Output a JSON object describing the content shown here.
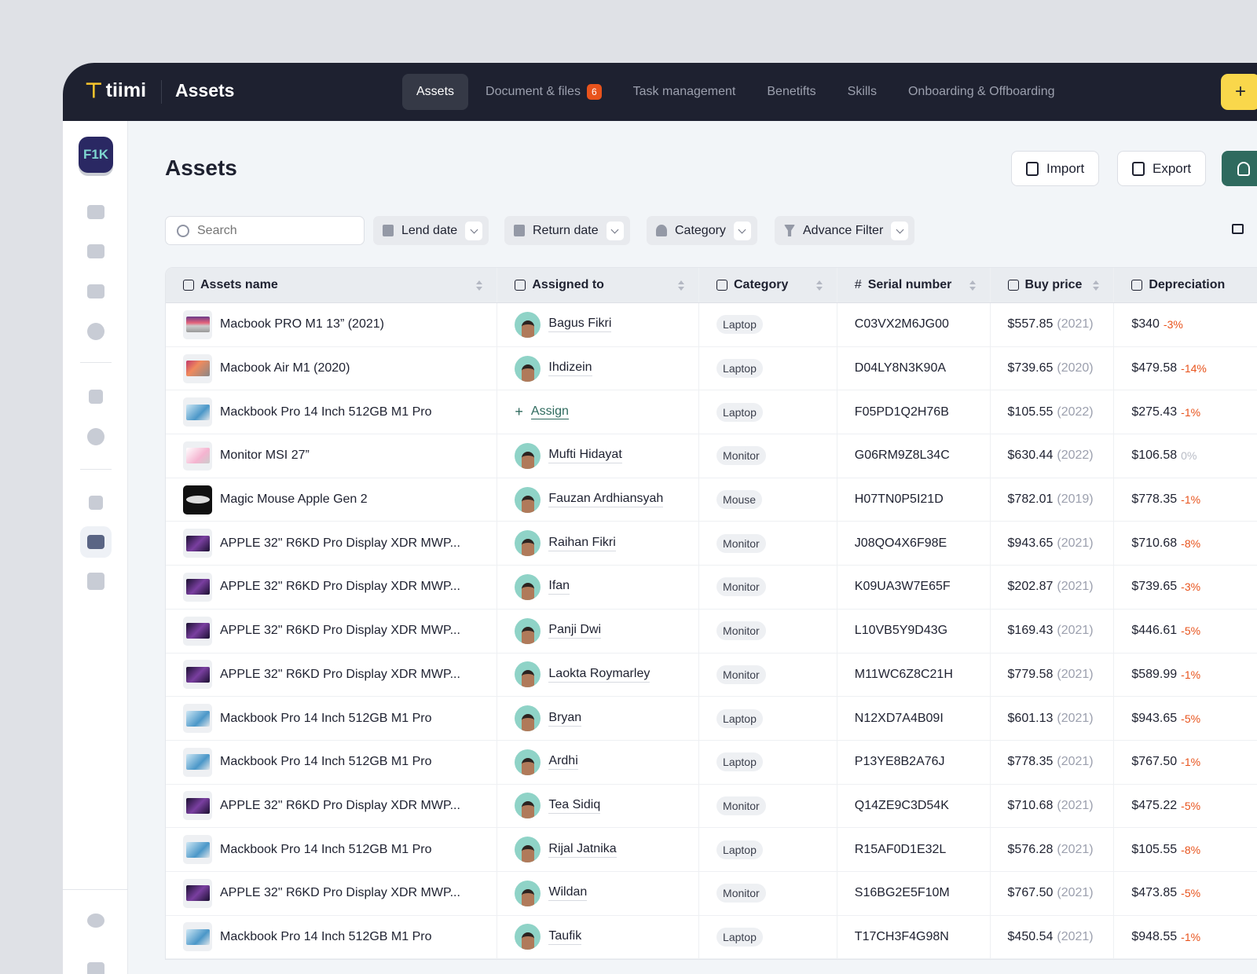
{
  "header": {
    "brand": "tiimi",
    "app_title": "Assets",
    "nav": [
      {
        "label": "Assets",
        "active": true
      },
      {
        "label": "Document & files",
        "badge": "6"
      },
      {
        "label": "Task management"
      },
      {
        "label": "Benetifts"
      },
      {
        "label": "Skills"
      },
      {
        "label": "Onboarding & Offboarding"
      }
    ],
    "add_label": "+"
  },
  "sidebar": {
    "workspace": "F1K"
  },
  "page": {
    "title": "Assets",
    "import_label": "Import",
    "export_label": "Export"
  },
  "filters": {
    "search_placeholder": "Search",
    "lend_date": "Lend date",
    "return_date": "Return date",
    "category": "Category",
    "advance": "Advance Filter"
  },
  "table": {
    "columns": [
      "Assets name",
      "Assigned to",
      "Category",
      "Serial number",
      "Buy price",
      "Depreciation"
    ],
    "assign_label": "Assign",
    "rows": [
      {
        "name": "Macbook PRO M1 13” (2021)",
        "thumb": "laptop",
        "assigned": "Bagus Fikri",
        "category": "Laptop",
        "serial": "C03VX2M6JG00",
        "price": "$557.85",
        "year": "(2021)",
        "dep": "$340",
        "pct": "-3%"
      },
      {
        "name": "Macbook Air M1 (2020)",
        "thumb": "laptop2",
        "assigned": "Ihdizein",
        "category": "Laptop",
        "serial": "D04LY8N3K90A",
        "price": "$739.65",
        "year": "(2020)",
        "dep": "$479.58",
        "pct": "-14%"
      },
      {
        "name": "Mackbook Pro 14 Inch 512GB M1 Pro",
        "thumb": "laptop3",
        "assigned": null,
        "category": "Laptop",
        "serial": "F05PD1Q2H76B",
        "price": "$105.55",
        "year": "(2022)",
        "dep": "$275.43",
        "pct": "-1%"
      },
      {
        "name": "Monitor MSI 27”",
        "thumb": "monitor",
        "assigned": "Mufti Hidayat",
        "category": "Monitor",
        "serial": "G06RM9Z8L34C",
        "price": "$630.44",
        "year": "(2022)",
        "dep": "$106.58",
        "pct": "0%"
      },
      {
        "name": "Magic Mouse Apple Gen 2",
        "thumb": "mouse",
        "assigned": "Fauzan Ardhiansyah",
        "category": "Mouse",
        "serial": "H07TN0P5I21D",
        "price": "$782.01",
        "year": "(2019)",
        "dep": "$778.35",
        "pct": "-1%"
      },
      {
        "name": "APPLE 32\" R6KD Pro Display XDR MWP...",
        "thumb": "xdr",
        "assigned": "Raihan Fikri",
        "category": "Monitor",
        "serial": "J08QO4X6F98E",
        "price": "$943.65",
        "year": "(2021)",
        "dep": "$710.68",
        "pct": "-8%"
      },
      {
        "name": "APPLE 32\" R6KD Pro Display XDR MWP...",
        "thumb": "xdr",
        "assigned": "Ifan",
        "category": "Monitor",
        "serial": "K09UA3W7E65F",
        "price": "$202.87",
        "year": "(2021)",
        "dep": "$739.65",
        "pct": "-3%"
      },
      {
        "name": "APPLE 32\" R6KD Pro Display XDR MWP...",
        "thumb": "xdr",
        "assigned": "Panji Dwi",
        "category": "Monitor",
        "serial": "L10VB5Y9D43G",
        "price": "$169.43",
        "year": "(2021)",
        "dep": "$446.61",
        "pct": "-5%"
      },
      {
        "name": "APPLE 32\" R6KD Pro Display XDR MWP...",
        "thumb": "xdr",
        "assigned": "Laokta Roymarley",
        "category": "Monitor",
        "serial": "M11WC6Z8C21H",
        "price": "$779.58",
        "year": "(2021)",
        "dep": "$589.99",
        "pct": "-1%"
      },
      {
        "name": "Mackbook Pro 14 Inch 512GB M1 Pro",
        "thumb": "laptop3",
        "assigned": "Bryan",
        "category": "Laptop",
        "serial": "N12XD7A4B09I",
        "price": "$601.13",
        "year": "(2021)",
        "dep": "$943.65",
        "pct": "-5%"
      },
      {
        "name": "Mackbook Pro 14 Inch 512GB M1 Pro",
        "thumb": "laptop3",
        "assigned": "Ardhi",
        "category": "Laptop",
        "serial": "P13YE8B2A76J",
        "price": "$778.35",
        "year": "(2021)",
        "dep": "$767.50",
        "pct": "-1%"
      },
      {
        "name": "APPLE 32\" R6KD Pro Display XDR MWP...",
        "thumb": "xdr",
        "assigned": "Tea Sidiq",
        "category": "Monitor",
        "serial": "Q14ZE9C3D54K",
        "price": "$710.68",
        "year": "(2021)",
        "dep": "$475.22",
        "pct": "-5%"
      },
      {
        "name": "Mackbook Pro 14 Inch 512GB M1 Pro",
        "thumb": "laptop3",
        "assigned": "Rijal Jatnika",
        "category": "Laptop",
        "serial": "R15AF0D1E32L",
        "price": "$576.28",
        "year": "(2021)",
        "dep": "$105.55",
        "pct": "-8%"
      },
      {
        "name": "APPLE 32\" R6KD Pro Display XDR MWP...",
        "thumb": "xdr",
        "assigned": "Wildan",
        "category": "Monitor",
        "serial": "S16BG2E5F10M",
        "price": "$767.50",
        "year": "(2021)",
        "dep": "$473.85",
        "pct": "-5%"
      },
      {
        "name": "Mackbook Pro 14 Inch 512GB M1 Pro",
        "thumb": "laptop3",
        "assigned": "Taufik",
        "category": "Laptop",
        "serial": "T17CH3F4G98N",
        "price": "$450.54",
        "year": "(2021)",
        "dep": "$948.55",
        "pct": "-1%"
      }
    ]
  },
  "colors": {
    "topbar": "#1e2130",
    "accent_yellow": "#f9d74b",
    "accent_green": "#2f6a5e",
    "negative": "#e8531c"
  }
}
